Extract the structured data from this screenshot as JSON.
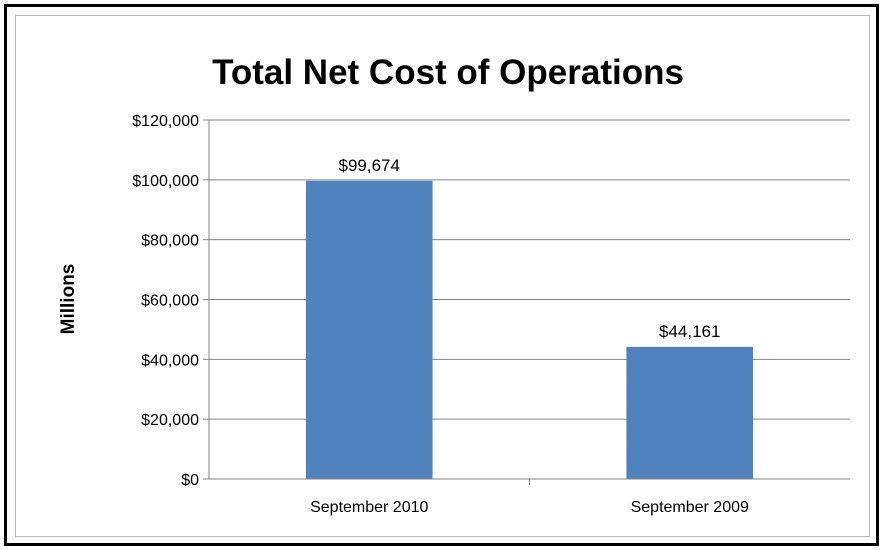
{
  "chart_data": {
    "type": "bar",
    "title": "Total Net Cost of Operations",
    "xlabel": "",
    "ylabel": "Millions",
    "categories": [
      "September 2010",
      "September 2009"
    ],
    "values": [
      99674,
      44161
    ],
    "data_labels": [
      "$99,674",
      "$44,161"
    ],
    "ylim": [
      0,
      120000
    ],
    "y_ticks": [
      0,
      20000,
      40000,
      60000,
      80000,
      100000,
      120000
    ],
    "y_tick_labels": [
      "$0",
      "$20,000",
      "$40,000",
      "$60,000",
      "$80,000",
      "$100,000",
      "$120,000"
    ],
    "grid": true,
    "legend": "none",
    "bar_color": "#4f81bd",
    "grid_color": "#868686"
  }
}
